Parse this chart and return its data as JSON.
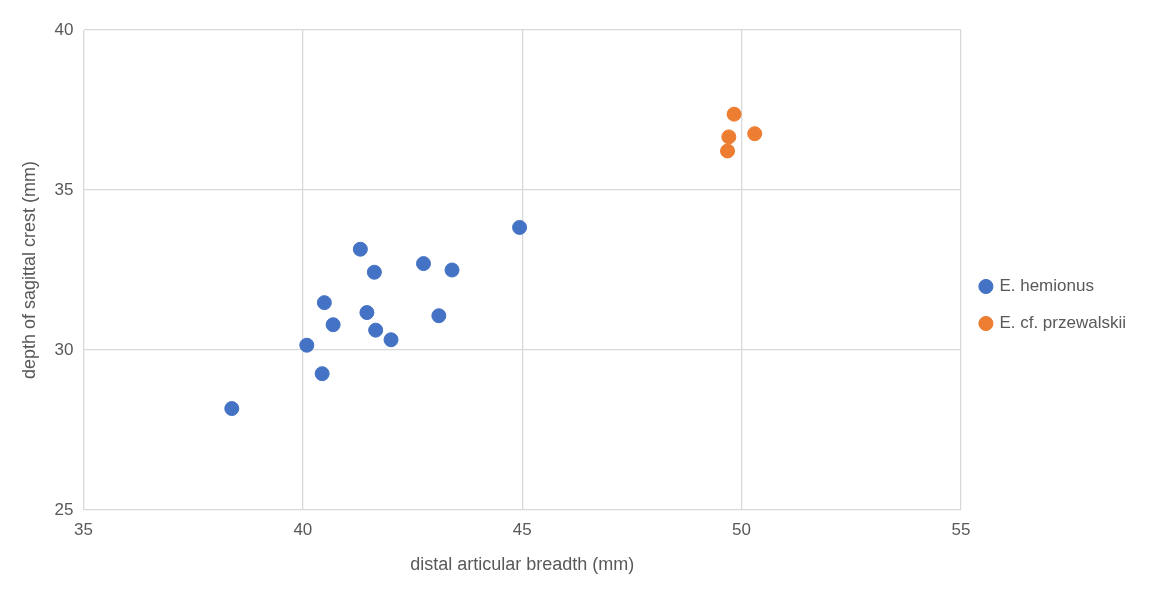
{
  "chart_data": {
    "type": "scatter",
    "xlabel": "distal articular breadth (mm)",
    "ylabel": "depth of sagittal crest (mm)",
    "xlim": [
      35,
      55
    ],
    "xticks": [
      35,
      40,
      45,
      50,
      55
    ],
    "ylim": [
      25,
      40
    ],
    "yticks": [
      25,
      30,
      35,
      40
    ],
    "grid": true,
    "legend": "right",
    "marker": "circle",
    "series": [
      {
        "name": "E. hemionus",
        "color": "#4472c4",
        "x": [
          38.38,
          40.09,
          40.44,
          40.49,
          40.69,
          41.31,
          41.46,
          41.63,
          41.66,
          42.01,
          42.75,
          43.1,
          43.4,
          44.94
        ],
        "values": [
          28.17,
          30.15,
          29.26,
          31.48,
          30.79,
          33.15,
          31.17,
          32.43,
          30.62,
          30.32,
          32.7,
          31.07,
          32.5,
          33.83
        ]
      },
      {
        "name": "E. cf. przewalskii",
        "color": "#ed7d31",
        "x": [
          49.83,
          49.71,
          49.68,
          50.3
        ],
        "values": [
          37.37,
          36.66,
          36.22,
          36.76
        ]
      }
    ]
  }
}
